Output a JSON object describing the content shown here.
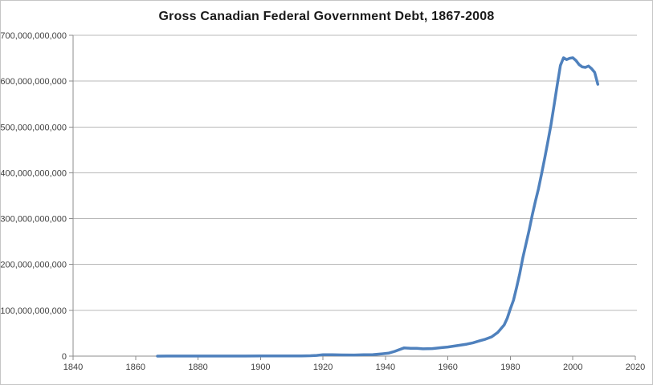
{
  "window": {
    "background": "#FFFFFF",
    "border_color": "#C6C6C6"
  },
  "colors": {
    "axis": "#8C8C8C",
    "gridline": "#B8B8B8",
    "tick_label": "#3F3F3F",
    "title": "#1A1A1A",
    "series_line": "#4F81BD"
  },
  "chart_data": {
    "type": "line",
    "title": "Gross Canadian Federal Government Debt, 1867-2008",
    "xlabel": "",
    "ylabel": "",
    "unit": "dollars",
    "legend": "none",
    "grid": "horizontal",
    "x_axis": {
      "min": 1840,
      "max": 2020,
      "tick_interval": 20,
      "tick_labels": [
        "1840",
        "1860",
        "1880",
        "1900",
        "1920",
        "1940",
        "1960",
        "1980",
        "2000",
        "2020"
      ]
    },
    "y_axis": {
      "min": 0,
      "max_billion": 700,
      "tick_interval_billion": 100,
      "tick_labels": [
        "0",
        "100,000,000,000",
        "200,000,000,000",
        "300,000,000,000",
        "400,000,000,000",
        "500,000,000,000",
        "600,000,000,000",
        "700,000,000,000"
      ]
    },
    "series": [
      {
        "name": "Gross federal government debt",
        "color": "#4F81BD",
        "points_year_billion": [
          [
            1867,
            0.08
          ],
          [
            1870,
            0.09
          ],
          [
            1875,
            0.12
          ],
          [
            1880,
            0.16
          ],
          [
            1885,
            0.2
          ],
          [
            1890,
            0.24
          ],
          [
            1895,
            0.26
          ],
          [
            1900,
            0.27
          ],
          [
            1905,
            0.3
          ],
          [
            1910,
            0.35
          ],
          [
            1913,
            0.48
          ],
          [
            1916,
            0.9
          ],
          [
            1918,
            1.5
          ],
          [
            1920,
            3.0
          ],
          [
            1923,
            2.9
          ],
          [
            1926,
            2.6
          ],
          [
            1930,
            2.5
          ],
          [
            1933,
            3.1
          ],
          [
            1936,
            3.3
          ],
          [
            1939,
            5.0
          ],
          [
            1941,
            6.5
          ],
          [
            1943,
            10.5
          ],
          [
            1946,
            18.0
          ],
          [
            1948,
            17.2
          ],
          [
            1950,
            17.0
          ],
          [
            1952,
            16.0
          ],
          [
            1955,
            16.5
          ],
          [
            1958,
            18.5
          ],
          [
            1960,
            20.0
          ],
          [
            1963,
            23.0
          ],
          [
            1966,
            26.0
          ],
          [
            1968,
            29.0
          ],
          [
            1970,
            33.0
          ],
          [
            1972,
            37.0
          ],
          [
            1974,
            42.0
          ],
          [
            1976,
            52.0
          ],
          [
            1978,
            68.0
          ],
          [
            1979,
            83.0
          ],
          [
            1980,
            103
          ],
          [
            1981,
            122
          ],
          [
            1982,
            150
          ],
          [
            1983,
            180
          ],
          [
            1984,
            215
          ],
          [
            1985,
            245
          ],
          [
            1986,
            275
          ],
          [
            1987,
            308
          ],
          [
            1988,
            338
          ],
          [
            1989,
            365
          ],
          [
            1990,
            398
          ],
          [
            1991,
            432
          ],
          [
            1992,
            468
          ],
          [
            1993,
            505
          ],
          [
            1994,
            548
          ],
          [
            1995,
            592
          ],
          [
            1996,
            634
          ],
          [
            1997,
            651
          ],
          [
            1998,
            647
          ],
          [
            1999,
            650
          ],
          [
            2000,
            651
          ],
          [
            2001,
            645
          ],
          [
            2002,
            636
          ],
          [
            2003,
            631
          ],
          [
            2004,
            630
          ],
          [
            2005,
            633
          ],
          [
            2006,
            627
          ],
          [
            2007,
            619
          ],
          [
            2008,
            593
          ]
        ]
      }
    ]
  }
}
